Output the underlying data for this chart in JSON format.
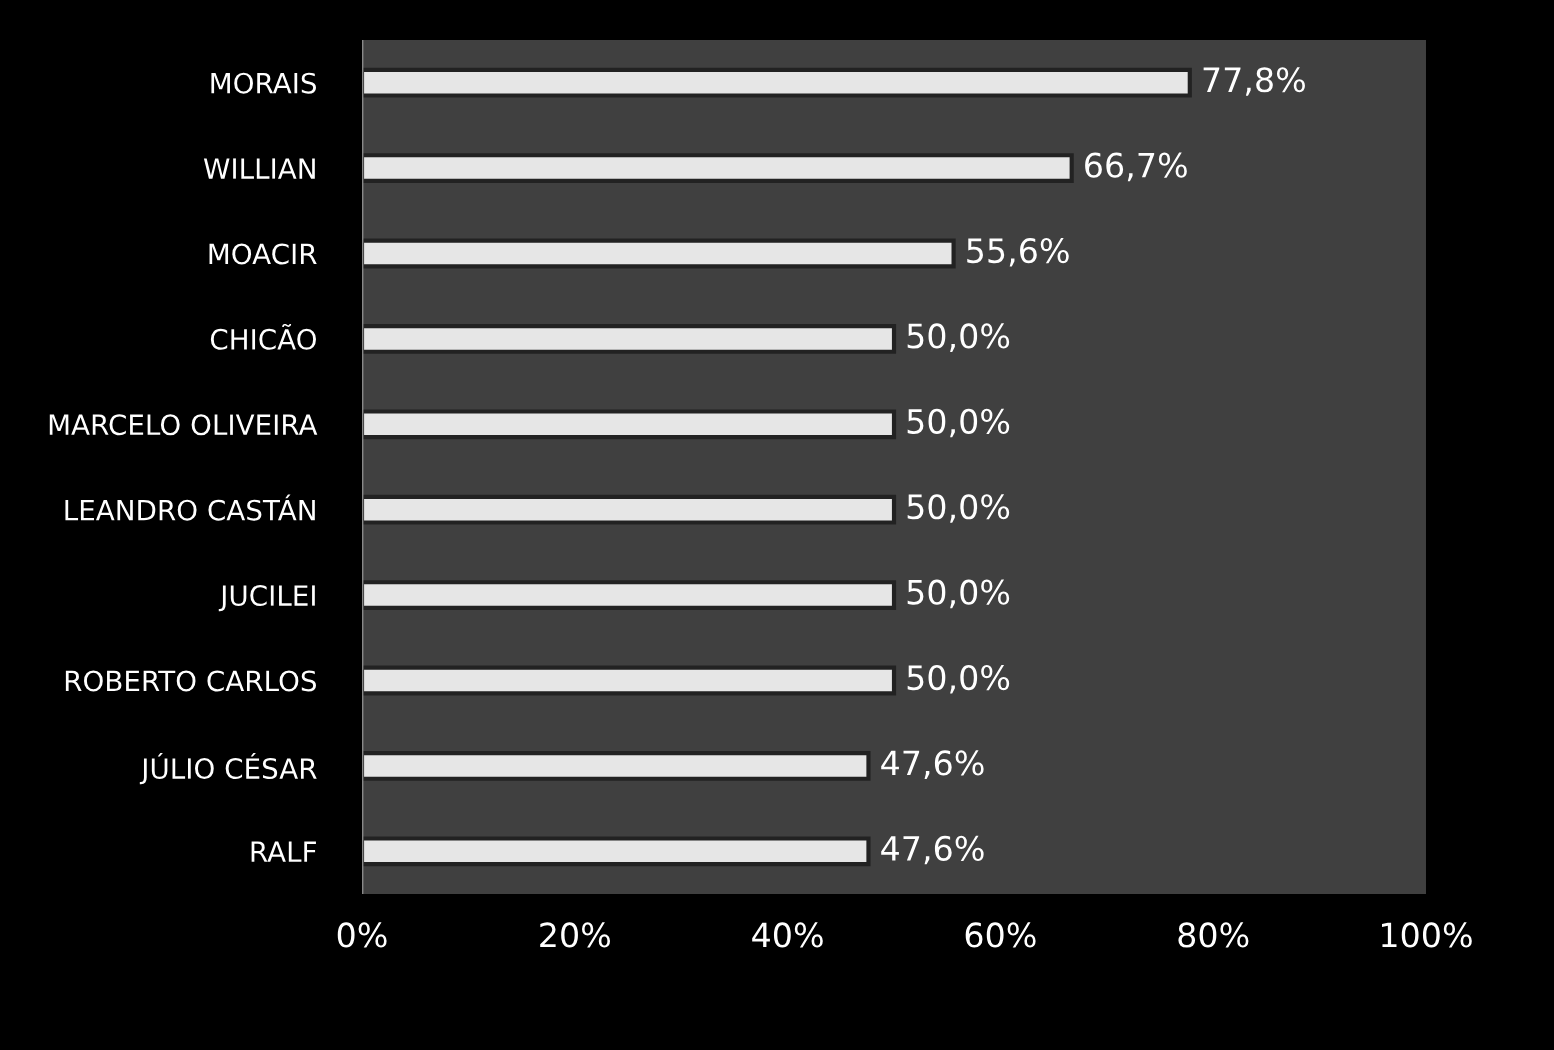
{
  "chart_data": {
    "type": "bar",
    "orientation": "horizontal",
    "categories": [
      "MORAIS",
      "WILLIAN",
      "MOACIR",
      "CHICÃO",
      "MARCELO OLIVEIRA",
      "LEANDRO CASTÁN",
      "JUCILEI",
      "ROBERTO CARLOS",
      "JÚLIO CÉSAR",
      "RALF"
    ],
    "values": [
      77.8,
      66.7,
      55.6,
      50.0,
      50.0,
      50.0,
      50.0,
      50.0,
      47.6,
      47.6
    ],
    "value_labels": [
      "77,8%",
      "66,7%",
      "55,6%",
      "50,0%",
      "50,0%",
      "50,0%",
      "50,0%",
      "50,0%",
      "47,6%",
      "47,6%"
    ],
    "color": "#e6e6e6",
    "xlim": [
      0,
      100
    ],
    "xticks": [
      {
        "value": 0,
        "label": "0%"
      },
      {
        "value": 20,
        "label": "20%"
      },
      {
        "value": 40,
        "label": "40%"
      },
      {
        "value": 60,
        "label": "60%"
      },
      {
        "value": 80,
        "label": "80%"
      },
      {
        "value": 100,
        "label": "100%"
      }
    ],
    "grid": false,
    "legend": false
  }
}
